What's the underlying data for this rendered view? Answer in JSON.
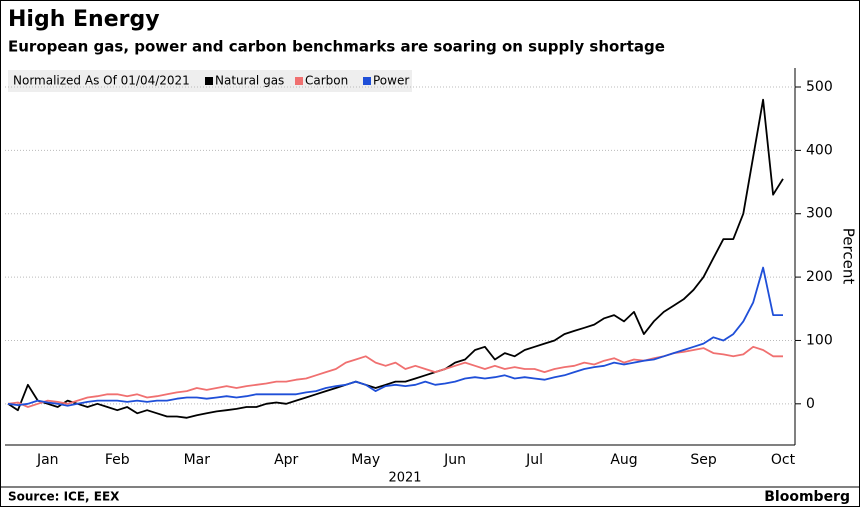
{
  "chart_data": {
    "type": "line",
    "title": "High Energy",
    "subtitle": "European gas, power and carbon benchmarks are soaring on supply shortage",
    "legend_title": "Normalized As Of 01/04/2021",
    "x_label": "2021",
    "y_label": "Percent",
    "source": "Source: ICE, EEX",
    "brand": "Bloomberg",
    "grid": true,
    "categories": [
      null,
      null,
      null,
      null,
      "Jan",
      null,
      null,
      null,
      null,
      null,
      null,
      "Feb",
      null,
      null,
      null,
      null,
      null,
      null,
      null,
      "Mar",
      null,
      null,
      null,
      null,
      null,
      null,
      null,
      null,
      "Apr",
      null,
      null,
      null,
      null,
      null,
      null,
      null,
      "May",
      null,
      null,
      null,
      null,
      null,
      null,
      null,
      null,
      "Jun",
      null,
      null,
      null,
      null,
      null,
      null,
      null,
      "Jul",
      null,
      null,
      null,
      null,
      null,
      null,
      null,
      null,
      "Aug",
      null,
      null,
      null,
      null,
      null,
      null,
      null,
      "Sep",
      null,
      null,
      null,
      null,
      null,
      null,
      null,
      "Oct"
    ],
    "series": [
      {
        "name": "Natural gas",
        "color": "#000000",
        "values": [
          0,
          -10,
          30,
          5,
          0,
          -5,
          5,
          0,
          -5,
          0,
          -5,
          -10,
          -5,
          -15,
          -10,
          -15,
          -20,
          -20,
          -22,
          -18,
          -15,
          -12,
          -10,
          -8,
          -5,
          -5,
          0,
          2,
          0,
          5,
          10,
          15,
          20,
          25,
          30,
          35,
          30,
          25,
          30,
          35,
          35,
          40,
          45,
          50,
          55,
          65,
          70,
          85,
          90,
          70,
          80,
          75,
          85,
          90,
          95,
          100,
          110,
          115,
          120,
          125,
          135,
          140,
          130,
          145,
          110,
          130,
          145,
          155,
          165,
          180,
          200,
          230,
          260,
          260,
          300,
          390,
          480,
          330,
          355
        ]
      },
      {
        "name": "Carbon",
        "color": "#f07070",
        "values": [
          0,
          2,
          -5,
          0,
          5,
          3,
          0,
          5,
          10,
          12,
          15,
          15,
          12,
          15,
          10,
          12,
          15,
          18,
          20,
          25,
          22,
          25,
          28,
          25,
          28,
          30,
          32,
          35,
          35,
          38,
          40,
          45,
          50,
          55,
          65,
          70,
          75,
          65,
          60,
          65,
          55,
          60,
          55,
          50,
          55,
          60,
          65,
          60,
          55,
          60,
          55,
          58,
          55,
          55,
          50,
          55,
          58,
          60,
          65,
          62,
          68,
          72,
          65,
          70,
          68,
          72,
          75,
          80,
          82,
          85,
          88,
          80,
          78,
          75,
          78,
          90,
          85,
          75,
          75
        ]
      },
      {
        "name": "Power",
        "color": "#1f4fd8",
        "values": [
          0,
          -2,
          0,
          5,
          2,
          0,
          -3,
          0,
          3,
          5,
          5,
          5,
          3,
          5,
          3,
          5,
          5,
          8,
          10,
          10,
          8,
          10,
          12,
          10,
          12,
          15,
          15,
          15,
          15,
          15,
          18,
          20,
          25,
          28,
          30,
          35,
          30,
          20,
          28,
          30,
          28,
          30,
          35,
          30,
          32,
          35,
          40,
          42,
          40,
          42,
          45,
          40,
          42,
          40,
          38,
          42,
          45,
          50,
          55,
          58,
          60,
          65,
          62,
          65,
          68,
          70,
          75,
          80,
          85,
          90,
          95,
          105,
          100,
          110,
          130,
          160,
          215,
          140,
          140
        ]
      }
    ],
    "ylim": [
      -65,
      530
    ],
    "yticks": [
      0,
      100,
      200,
      300,
      400,
      500
    ]
  }
}
